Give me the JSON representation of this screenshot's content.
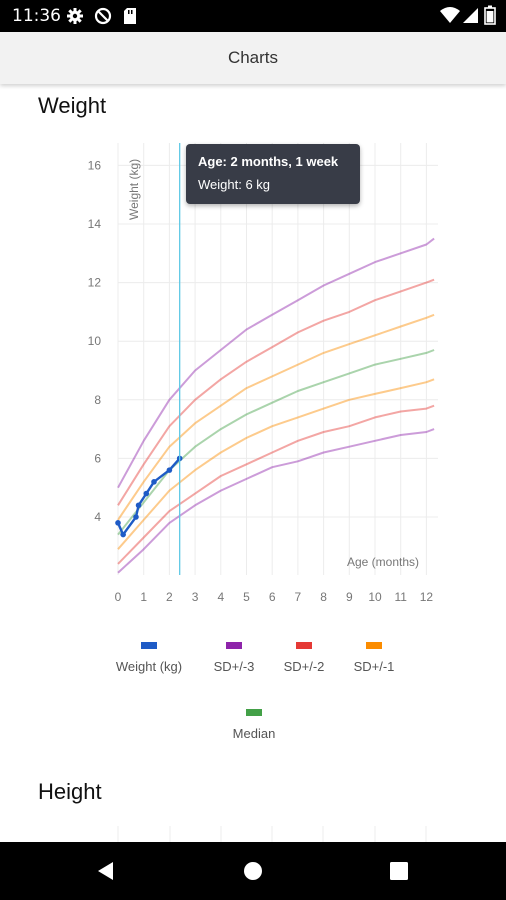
{
  "status_bar": {
    "time": "11:36",
    "left_icons": [
      "gear-icon",
      "do-not-disturb-icon",
      "sd-card-icon"
    ],
    "right_icons": [
      "wifi-icon",
      "signal-icon",
      "battery-icon"
    ]
  },
  "app_bar": {
    "title": "Charts"
  },
  "sections": {
    "weight_title": "Weight",
    "height_title": "Height"
  },
  "tooltip": {
    "title": "Age: 2 months, 1 week",
    "body": "Weight: 6 kg"
  },
  "nav_bar": {
    "buttons": [
      "back-icon",
      "home-icon",
      "recents-icon"
    ]
  },
  "chart_data": [
    {
      "type": "line",
      "title": "Weight",
      "xlabel": "Age (months)",
      "ylabel": "Weight (kg)",
      "xlim": [
        0,
        12.3
      ],
      "ylim": [
        2.1,
        16.8
      ],
      "x_ticks": [
        0,
        1,
        2,
        3,
        4,
        5,
        6,
        7,
        8,
        9,
        10,
        11,
        12
      ],
      "y_ticks": [
        4,
        6,
        8,
        10,
        12,
        14,
        16
      ],
      "grid": true,
      "legend_position": "bottom",
      "cursor_x": 2.4,
      "series": [
        {
          "name": "Weight (kg)",
          "color": "#1e5bc6",
          "markers": true,
          "x": [
            0,
            0.2,
            0.7,
            0.8,
            1.1,
            1.4,
            2.0,
            2.4
          ],
          "y": [
            3.8,
            3.4,
            4.0,
            4.4,
            4.8,
            5.2,
            5.6,
            6.0
          ]
        },
        {
          "name": "SD+/-3",
          "color": "#8e24aa",
          "x": [
            0,
            1,
            2,
            3,
            4,
            5,
            6,
            7,
            8,
            9,
            10,
            11,
            12,
            12.3
          ],
          "y": [
            5.0,
            6.6,
            8.0,
            9.0,
            9.7,
            10.4,
            10.9,
            11.4,
            11.9,
            12.3,
            12.7,
            13.0,
            13.3,
            13.5
          ]
        },
        {
          "name": "SD+/-3",
          "color": "#8e24aa",
          "x": [
            0,
            1,
            2,
            3,
            4,
            5,
            6,
            7,
            8,
            9,
            10,
            11,
            12,
            12.3
          ],
          "y": [
            2.1,
            2.9,
            3.8,
            4.4,
            4.9,
            5.3,
            5.7,
            5.9,
            6.2,
            6.4,
            6.6,
            6.8,
            6.9,
            7.0
          ]
        },
        {
          "name": "SD+/-2",
          "color": "#e53935",
          "x": [
            0,
            1,
            2,
            3,
            4,
            5,
            6,
            7,
            8,
            9,
            10,
            11,
            12,
            12.3
          ],
          "y": [
            4.4,
            5.8,
            7.1,
            8.0,
            8.7,
            9.3,
            9.8,
            10.3,
            10.7,
            11.0,
            11.4,
            11.7,
            12.0,
            12.1
          ]
        },
        {
          "name": "SD+/-2",
          "color": "#e53935",
          "x": [
            0,
            1,
            2,
            3,
            4,
            5,
            6,
            7,
            8,
            9,
            10,
            11,
            12,
            12.3
          ],
          "y": [
            2.4,
            3.3,
            4.2,
            4.8,
            5.4,
            5.8,
            6.2,
            6.6,
            6.9,
            7.1,
            7.4,
            7.6,
            7.7,
            7.8
          ]
        },
        {
          "name": "SD+/-1",
          "color": "#fb8c00",
          "x": [
            0,
            1,
            2,
            3,
            4,
            5,
            6,
            7,
            8,
            9,
            10,
            11,
            12,
            12.3
          ],
          "y": [
            3.9,
            5.2,
            6.4,
            7.2,
            7.8,
            8.4,
            8.8,
            9.2,
            9.6,
            9.9,
            10.2,
            10.5,
            10.8,
            10.9
          ]
        },
        {
          "name": "SD+/-1",
          "color": "#fb8c00",
          "x": [
            0,
            1,
            2,
            3,
            4,
            5,
            6,
            7,
            8,
            9,
            10,
            11,
            12,
            12.3
          ],
          "y": [
            2.9,
            3.9,
            4.9,
            5.6,
            6.2,
            6.7,
            7.1,
            7.4,
            7.7,
            8.0,
            8.2,
            8.4,
            8.6,
            8.7
          ]
        },
        {
          "name": "Median",
          "color": "#43a047",
          "x": [
            0,
            1,
            2,
            3,
            4,
            5,
            6,
            7,
            8,
            9,
            10,
            11,
            12,
            12.3
          ],
          "y": [
            3.4,
            4.5,
            5.6,
            6.4,
            7.0,
            7.5,
            7.9,
            8.3,
            8.6,
            8.9,
            9.2,
            9.4,
            9.6,
            9.7
          ]
        }
      ],
      "legend": [
        {
          "label": "Weight (kg)",
          "color": "#1e5bc6"
        },
        {
          "label": "SD+/-3",
          "color": "#8e24aa"
        },
        {
          "label": "SD+/-2",
          "color": "#e53935"
        },
        {
          "label": "SD+/-1",
          "color": "#fb8c00"
        },
        {
          "label": "Median",
          "color": "#43a047"
        }
      ]
    },
    {
      "type": "line",
      "title": "Height",
      "note": "chart cut off at bottom edge of screen"
    }
  ]
}
